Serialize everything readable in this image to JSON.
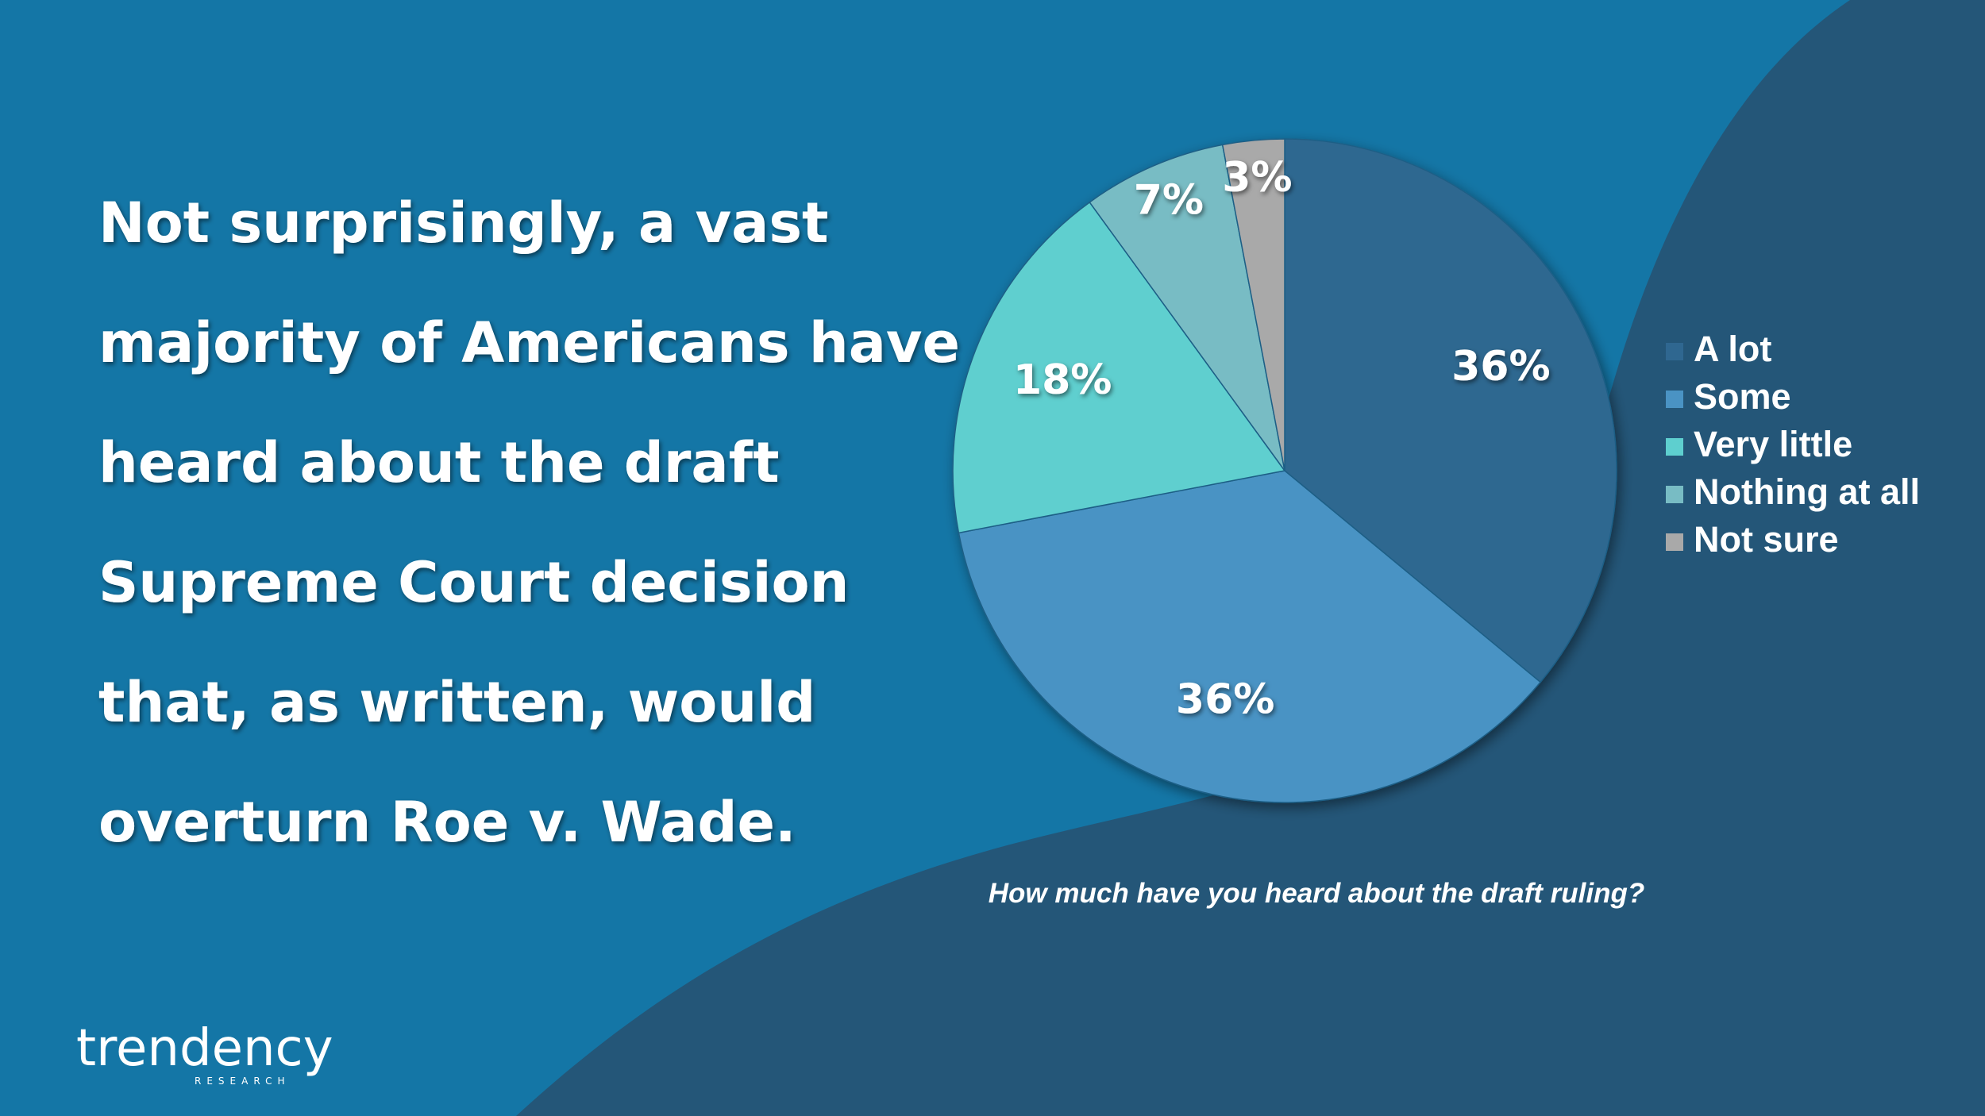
{
  "headline": [
    "Not surprisingly, a vast",
    "majority of Americans have",
    "heard about the draft",
    "Supreme Court decision",
    "that, as written, would",
    "overturn Roe v. Wade."
  ],
  "chart_data": {
    "type": "pie",
    "caption": "How much have you heard about the draft ruling?",
    "categories": [
      "A lot",
      "Some",
      "Very little",
      "Nothing at all",
      "Not sure"
    ],
    "values": [
      36,
      36,
      18,
      7,
      3
    ],
    "value_labels": [
      "36%",
      "36%",
      "18%",
      "7%",
      "3%"
    ],
    "colors": [
      "#2f6790",
      "#4a93c4",
      "#5ecfcf",
      "#78bcc4",
      "#a9a9a9"
    ],
    "legend": "right"
  },
  "logo": {
    "name": "trendency",
    "sub": "RESEARCH"
  }
}
